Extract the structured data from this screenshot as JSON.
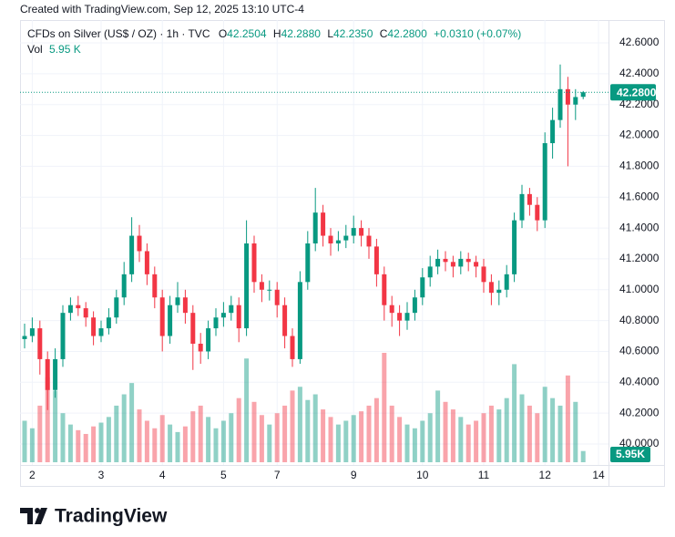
{
  "header": "Created with TradingView.com, Sep 12, 2025 13:10 UTC-4",
  "legend": {
    "symbol": "CFDs on Silver (US$ / OZ) · 1h · TVC",
    "items": [
      {
        "key": "O",
        "value": "42.2504"
      },
      {
        "key": "H",
        "value": "42.2880"
      },
      {
        "key": "L",
        "value": "42.2350"
      },
      {
        "key": "C",
        "value": "42.2800"
      }
    ],
    "change": "+0.0310 (+0.07%)",
    "volume_key": "Vol",
    "volume_value": "5.95 K"
  },
  "brand": "TradingView",
  "chart_data": {
    "type": "candlestick",
    "categories": [
      null,
      "2",
      null,
      null,
      null,
      null,
      null,
      null,
      null,
      null,
      "3",
      null,
      null,
      null,
      null,
      null,
      null,
      null,
      "4",
      null,
      null,
      null,
      null,
      null,
      null,
      null,
      "5",
      null,
      null,
      null,
      null,
      null,
      null,
      "7",
      null,
      null,
      null,
      null,
      null,
      null,
      null,
      null,
      null,
      "9",
      null,
      null,
      null,
      null,
      null,
      null,
      null,
      null,
      "10",
      null,
      null,
      null,
      null,
      null,
      null,
      null,
      "11",
      null,
      null,
      null,
      null,
      null,
      null,
      null,
      "12",
      null,
      null,
      null,
      null,
      null,
      null,
      "14"
    ],
    "open": [
      40.68,
      40.7,
      40.75,
      40.55,
      40.35,
      40.55,
      40.85,
      40.9,
      40.88,
      40.82,
      40.7,
      40.75,
      40.82,
      40.95,
      41.1,
      41.35,
      41.25,
      41.1,
      40.95,
      40.7,
      40.9,
      40.95,
      40.85,
      40.65,
      40.6,
      40.75,
      40.82,
      40.85,
      40.9,
      40.75,
      41.3,
      41.05,
      41.0,
      41.0,
      40.9,
      40.7,
      40.55,
      41.05,
      41.3,
      41.5,
      41.35,
      41.3,
      41.32,
      41.35,
      41.4,
      41.35,
      41.28,
      41.1,
      40.9,
      40.85,
      40.8,
      40.85,
      40.95,
      41.08,
      41.15,
      41.2,
      41.18,
      41.15,
      41.2,
      41.18,
      41.15,
      41.05,
      40.98,
      41.0,
      41.1,
      41.45,
      41.62,
      41.55,
      41.45,
      41.95,
      42.1,
      42.3,
      42.2,
      42.2504,
      null,
      null
    ],
    "high": [
      40.78,
      40.82,
      40.8,
      40.6,
      40.62,
      40.9,
      40.95,
      40.96,
      40.92,
      40.86,
      40.8,
      40.88,
      41.0,
      41.18,
      41.47,
      41.42,
      41.3,
      41.15,
      41.0,
      40.96,
      41.05,
      41.0,
      40.9,
      40.72,
      40.8,
      40.88,
      40.92,
      40.96,
      40.95,
      41.45,
      41.35,
      41.1,
      41.06,
      41.05,
      40.95,
      40.75,
      41.12,
      41.38,
      41.66,
      41.55,
      41.4,
      41.38,
      41.42,
      41.48,
      41.45,
      41.4,
      41.33,
      41.15,
      40.96,
      40.9,
      40.92,
      41.0,
      41.14,
      41.22,
      41.26,
      41.25,
      41.22,
      41.25,
      41.24,
      41.22,
      41.2,
      41.1,
      41.06,
      41.16,
      41.5,
      41.68,
      41.66,
      41.6,
      42.02,
      42.18,
      42.46,
      42.38,
      42.3,
      42.288,
      null,
      null
    ],
    "low": [
      40.62,
      40.66,
      40.45,
      40.22,
      40.3,
      40.5,
      40.8,
      40.83,
      40.76,
      40.64,
      40.66,
      40.71,
      40.78,
      40.9,
      41.05,
      41.18,
      41.03,
      40.88,
      40.6,
      40.65,
      40.85,
      40.78,
      40.48,
      40.52,
      40.55,
      40.7,
      40.76,
      40.8,
      40.66,
      40.7,
      40.98,
      40.92,
      40.93,
      40.82,
      40.62,
      40.5,
      40.52,
      41.0,
      41.25,
      41.28,
      41.22,
      41.25,
      41.27,
      41.3,
      41.28,
      41.2,
      41.02,
      40.8,
      40.76,
      40.7,
      40.74,
      40.8,
      40.9,
      41.02,
      41.1,
      41.12,
      41.08,
      41.1,
      41.12,
      41.08,
      40.98,
      40.9,
      40.9,
      40.95,
      41.05,
      41.4,
      41.48,
      41.38,
      41.4,
      41.85,
      42.05,
      41.8,
      42.1,
      42.235,
      null,
      null
    ],
    "close": [
      40.7,
      40.75,
      40.55,
      40.35,
      40.55,
      40.85,
      40.9,
      40.88,
      40.82,
      40.7,
      40.75,
      40.82,
      40.95,
      41.1,
      41.35,
      41.25,
      41.1,
      40.95,
      40.7,
      40.9,
      40.95,
      40.85,
      40.65,
      40.6,
      40.75,
      40.82,
      40.85,
      40.9,
      40.75,
      41.3,
      41.05,
      41.0,
      41.0,
      40.9,
      40.7,
      40.55,
      41.05,
      41.3,
      41.5,
      41.35,
      41.3,
      41.32,
      41.35,
      41.4,
      41.35,
      41.28,
      41.1,
      40.9,
      40.85,
      40.8,
      40.85,
      40.95,
      41.08,
      41.15,
      41.2,
      41.18,
      41.15,
      41.2,
      41.18,
      41.15,
      41.05,
      40.98,
      41.0,
      41.1,
      41.45,
      41.62,
      41.55,
      41.45,
      41.95,
      42.1,
      42.3,
      42.2,
      42.249,
      42.28,
      null,
      null
    ],
    "volume": [
      22000,
      18000,
      30000,
      45000,
      38000,
      26000,
      20000,
      17000,
      15000,
      19000,
      21000,
      24000,
      30000,
      36000,
      42000,
      28000,
      22000,
      18000,
      25000,
      20000,
      16000,
      19000,
      27000,
      30000,
      24000,
      18000,
      22000,
      26000,
      34000,
      55000,
      32000,
      25000,
      20000,
      26000,
      30000,
      38000,
      40000,
      33000,
      36000,
      28000,
      24000,
      20000,
      22000,
      25000,
      27000,
      30000,
      34000,
      58000,
      30000,
      24000,
      20000,
      18000,
      22000,
      26000,
      38000,
      32000,
      28000,
      24000,
      20000,
      22000,
      26000,
      30000,
      28000,
      34000,
      52000,
      36000,
      30000,
      26000,
      40000,
      34000,
      30000,
      46000,
      32000,
      5950,
      null,
      null
    ],
    "close_label": "42.2800",
    "volume_label": "5.95K",
    "up_color": "#089981",
    "down_color": "#f23645",
    "ylim": [
      39.864,
      42.748
    ],
    "yticks": [
      {
        "value": 40.0,
        "label": "40.0000"
      },
      {
        "value": 40.2,
        "label": "40.2000"
      },
      {
        "value": 40.4,
        "label": "40.4000"
      },
      {
        "value": 40.6,
        "label": "40.6000"
      },
      {
        "value": 40.8,
        "label": "40.8000"
      },
      {
        "value": 41.0,
        "label": "41.0000"
      },
      {
        "value": 41.2,
        "label": "41.2000"
      },
      {
        "value": 41.4,
        "label": "41.4000"
      },
      {
        "value": 41.6,
        "label": "41.6000"
      },
      {
        "value": 41.8,
        "label": "41.8000"
      },
      {
        "value": 42.0,
        "label": "42.0000"
      },
      {
        "value": 42.2,
        "label": "42.2000"
      },
      {
        "value": 42.4,
        "label": "42.4000"
      },
      {
        "value": 42.6,
        "label": "42.6000"
      }
    ],
    "grid": true
  }
}
